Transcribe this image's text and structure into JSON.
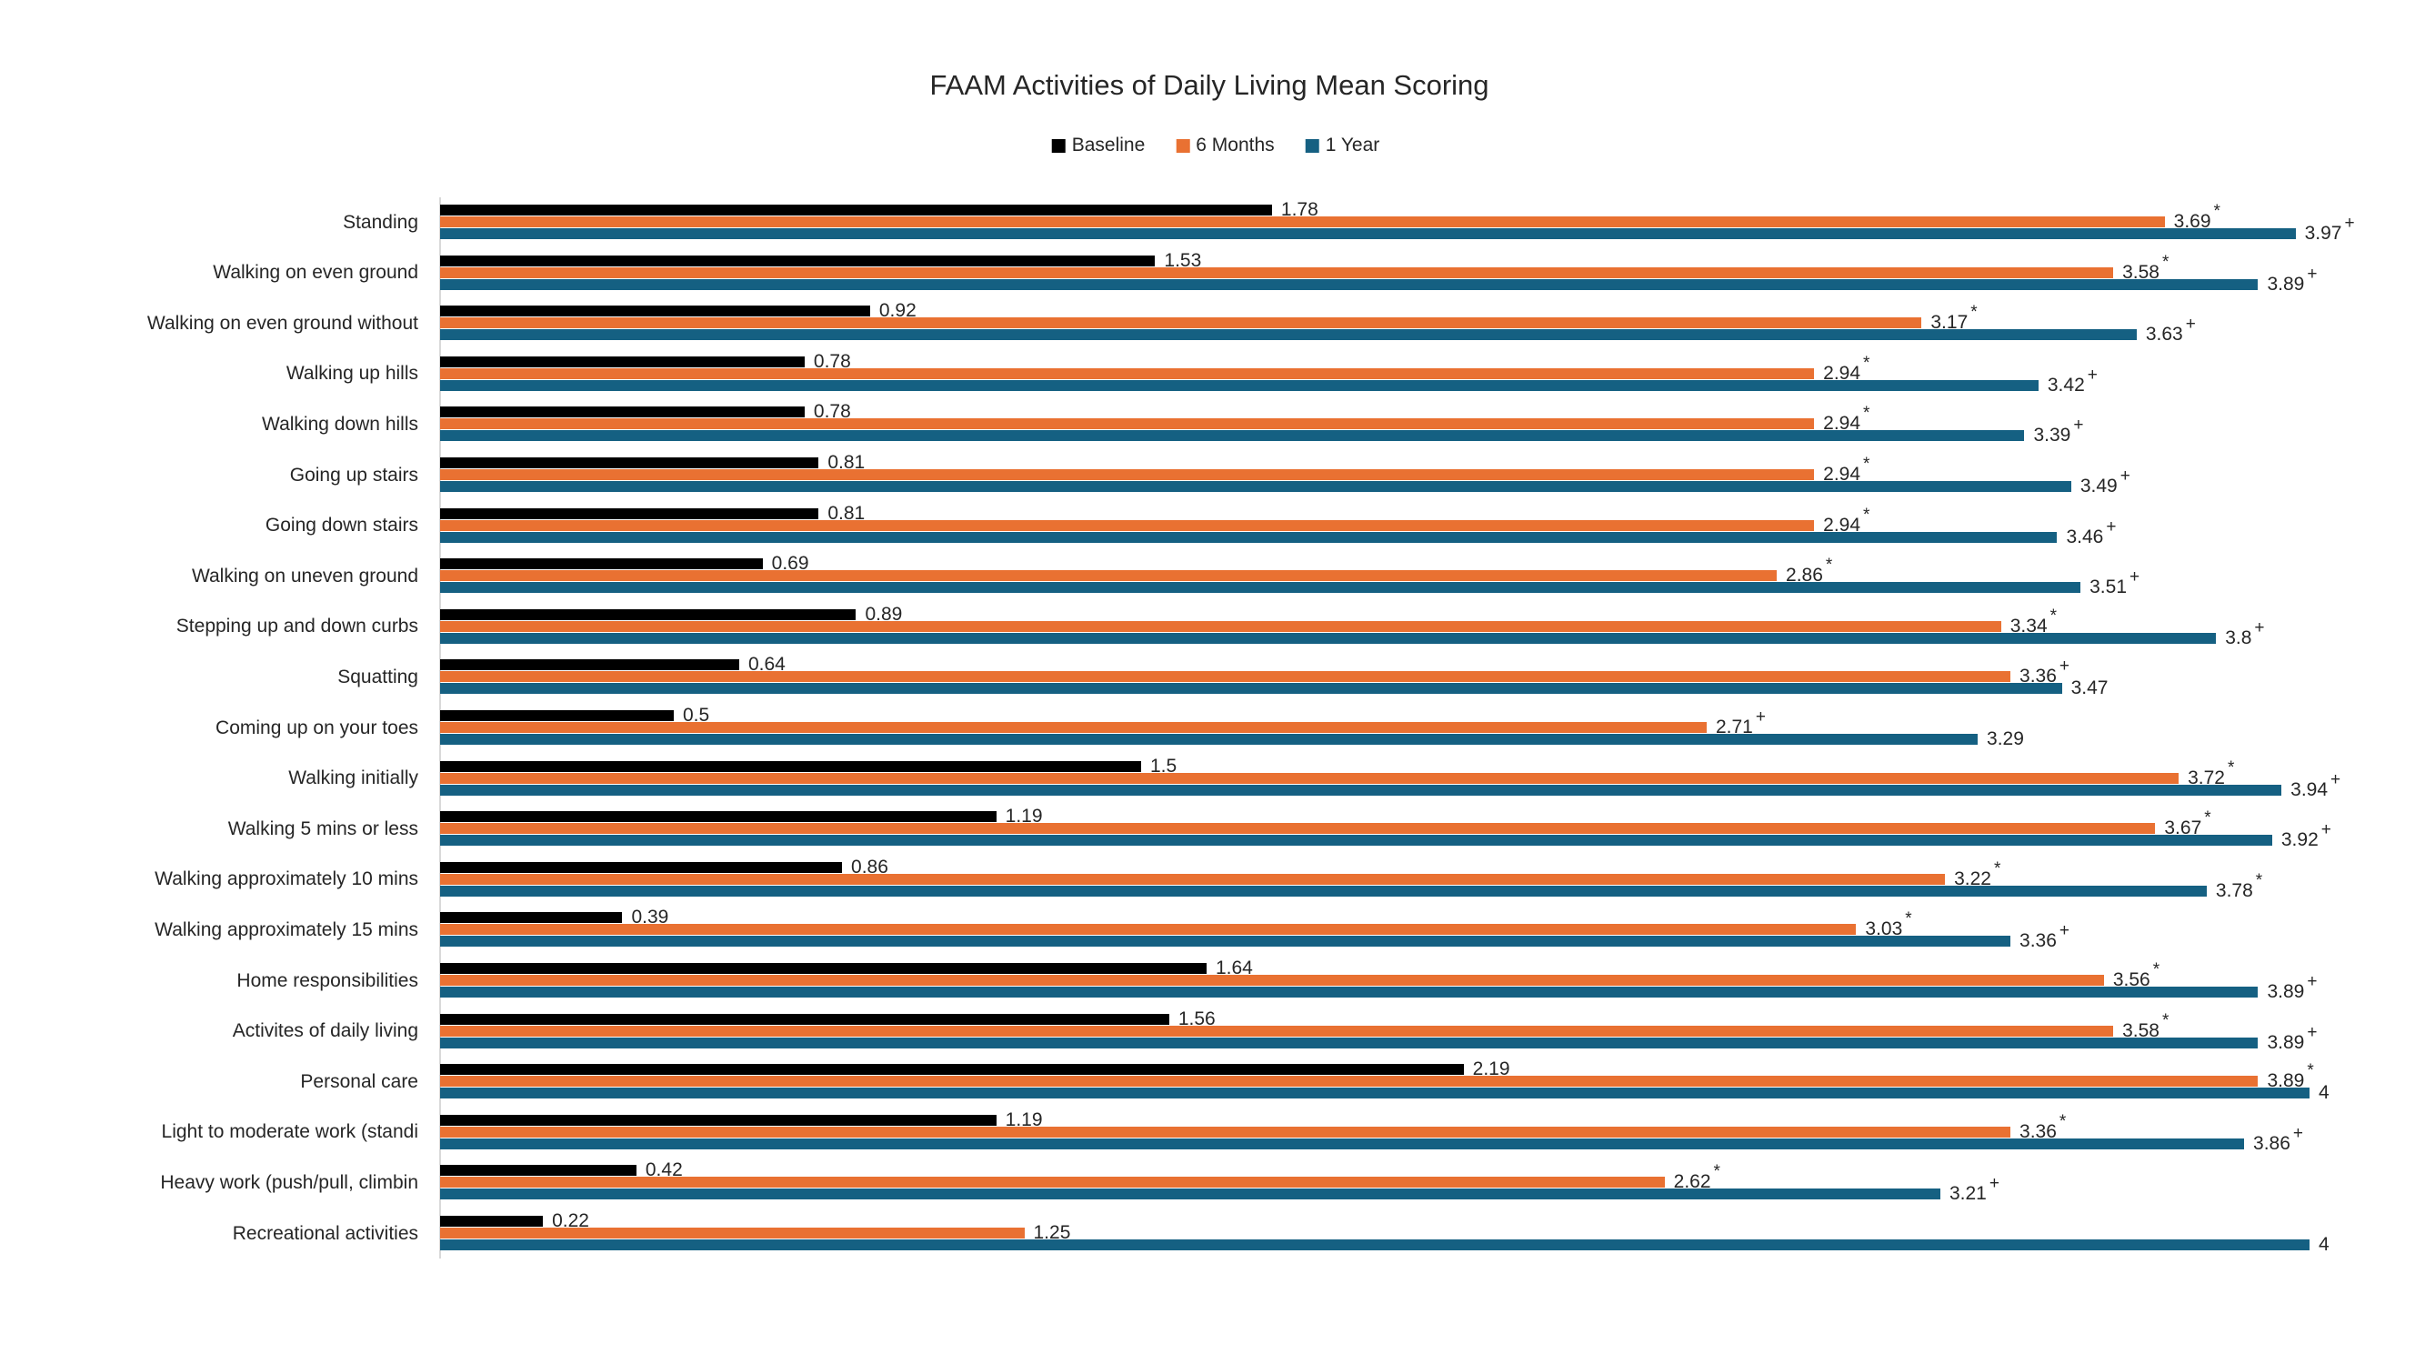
{
  "chart_data": {
    "type": "bar",
    "orientation": "horizontal",
    "title": "FAAM Activities of Daily Living Mean Scoring",
    "legend_position": "top",
    "xlim": [
      0,
      4
    ],
    "gridlines": false,
    "categories": [
      "Standing",
      "Walking on even ground",
      "Walking on even ground without",
      "Walking up hills",
      "Walking down hills",
      "Going up stairs",
      "Going down stairs",
      "Walking on uneven ground",
      "Stepping up and down curbs",
      "Squatting",
      "Coming up on your toes",
      "Walking initially",
      "Walking 5 mins or less",
      "Walking approximately 10 mins",
      "Walking approximately 15 mins",
      "Home responsibilities",
      "Activites of daily living",
      "Personal care",
      "Light to moderate work (standi",
      "Heavy work (push/pull, climbin",
      "Recreational activities"
    ],
    "series": [
      {
        "name": "Baseline",
        "color": "#000000",
        "values": [
          1.78,
          1.53,
          0.92,
          0.78,
          0.78,
          0.81,
          0.81,
          0.69,
          0.89,
          0.64,
          0.5,
          1.5,
          1.19,
          0.86,
          0.39,
          1.64,
          1.56,
          2.19,
          1.19,
          0.42,
          0.22
        ],
        "markers": [
          "",
          "",
          "",
          "",
          "",
          "",
          "",
          "",
          "",
          "",
          "",
          "",
          "",
          "",
          "",
          "",
          "",
          "",
          "",
          "",
          ""
        ]
      },
      {
        "name": "6 Months",
        "color": "#E97132",
        "values": [
          3.69,
          3.58,
          3.17,
          2.94,
          2.94,
          2.94,
          2.94,
          2.86,
          3.34,
          3.36,
          2.71,
          3.72,
          3.67,
          3.22,
          3.03,
          3.56,
          3.58,
          3.89,
          3.36,
          2.62,
          1.25
        ],
        "markers": [
          "*",
          "*",
          "*",
          "*",
          "*",
          "*",
          "*",
          "*",
          "*",
          "+",
          "+",
          "*",
          "*",
          "*",
          "*",
          "*",
          "*",
          "*",
          "*",
          "*",
          ""
        ]
      },
      {
        "name": "1 Year",
        "color": "#156082",
        "values": [
          3.97,
          3.89,
          3.63,
          3.42,
          3.39,
          3.49,
          3.46,
          3.51,
          3.8,
          3.47,
          3.29,
          3.94,
          3.92,
          3.78,
          3.36,
          3.89,
          3.89,
          4,
          3.86,
          3.21,
          4
        ],
        "markers": [
          "+",
          "+",
          "+",
          "+",
          "+",
          "+",
          "+",
          "+",
          "+",
          "",
          "",
          "+",
          "+",
          "*",
          "+",
          "+",
          "+",
          "",
          "+",
          "+",
          ""
        ]
      }
    ]
  }
}
